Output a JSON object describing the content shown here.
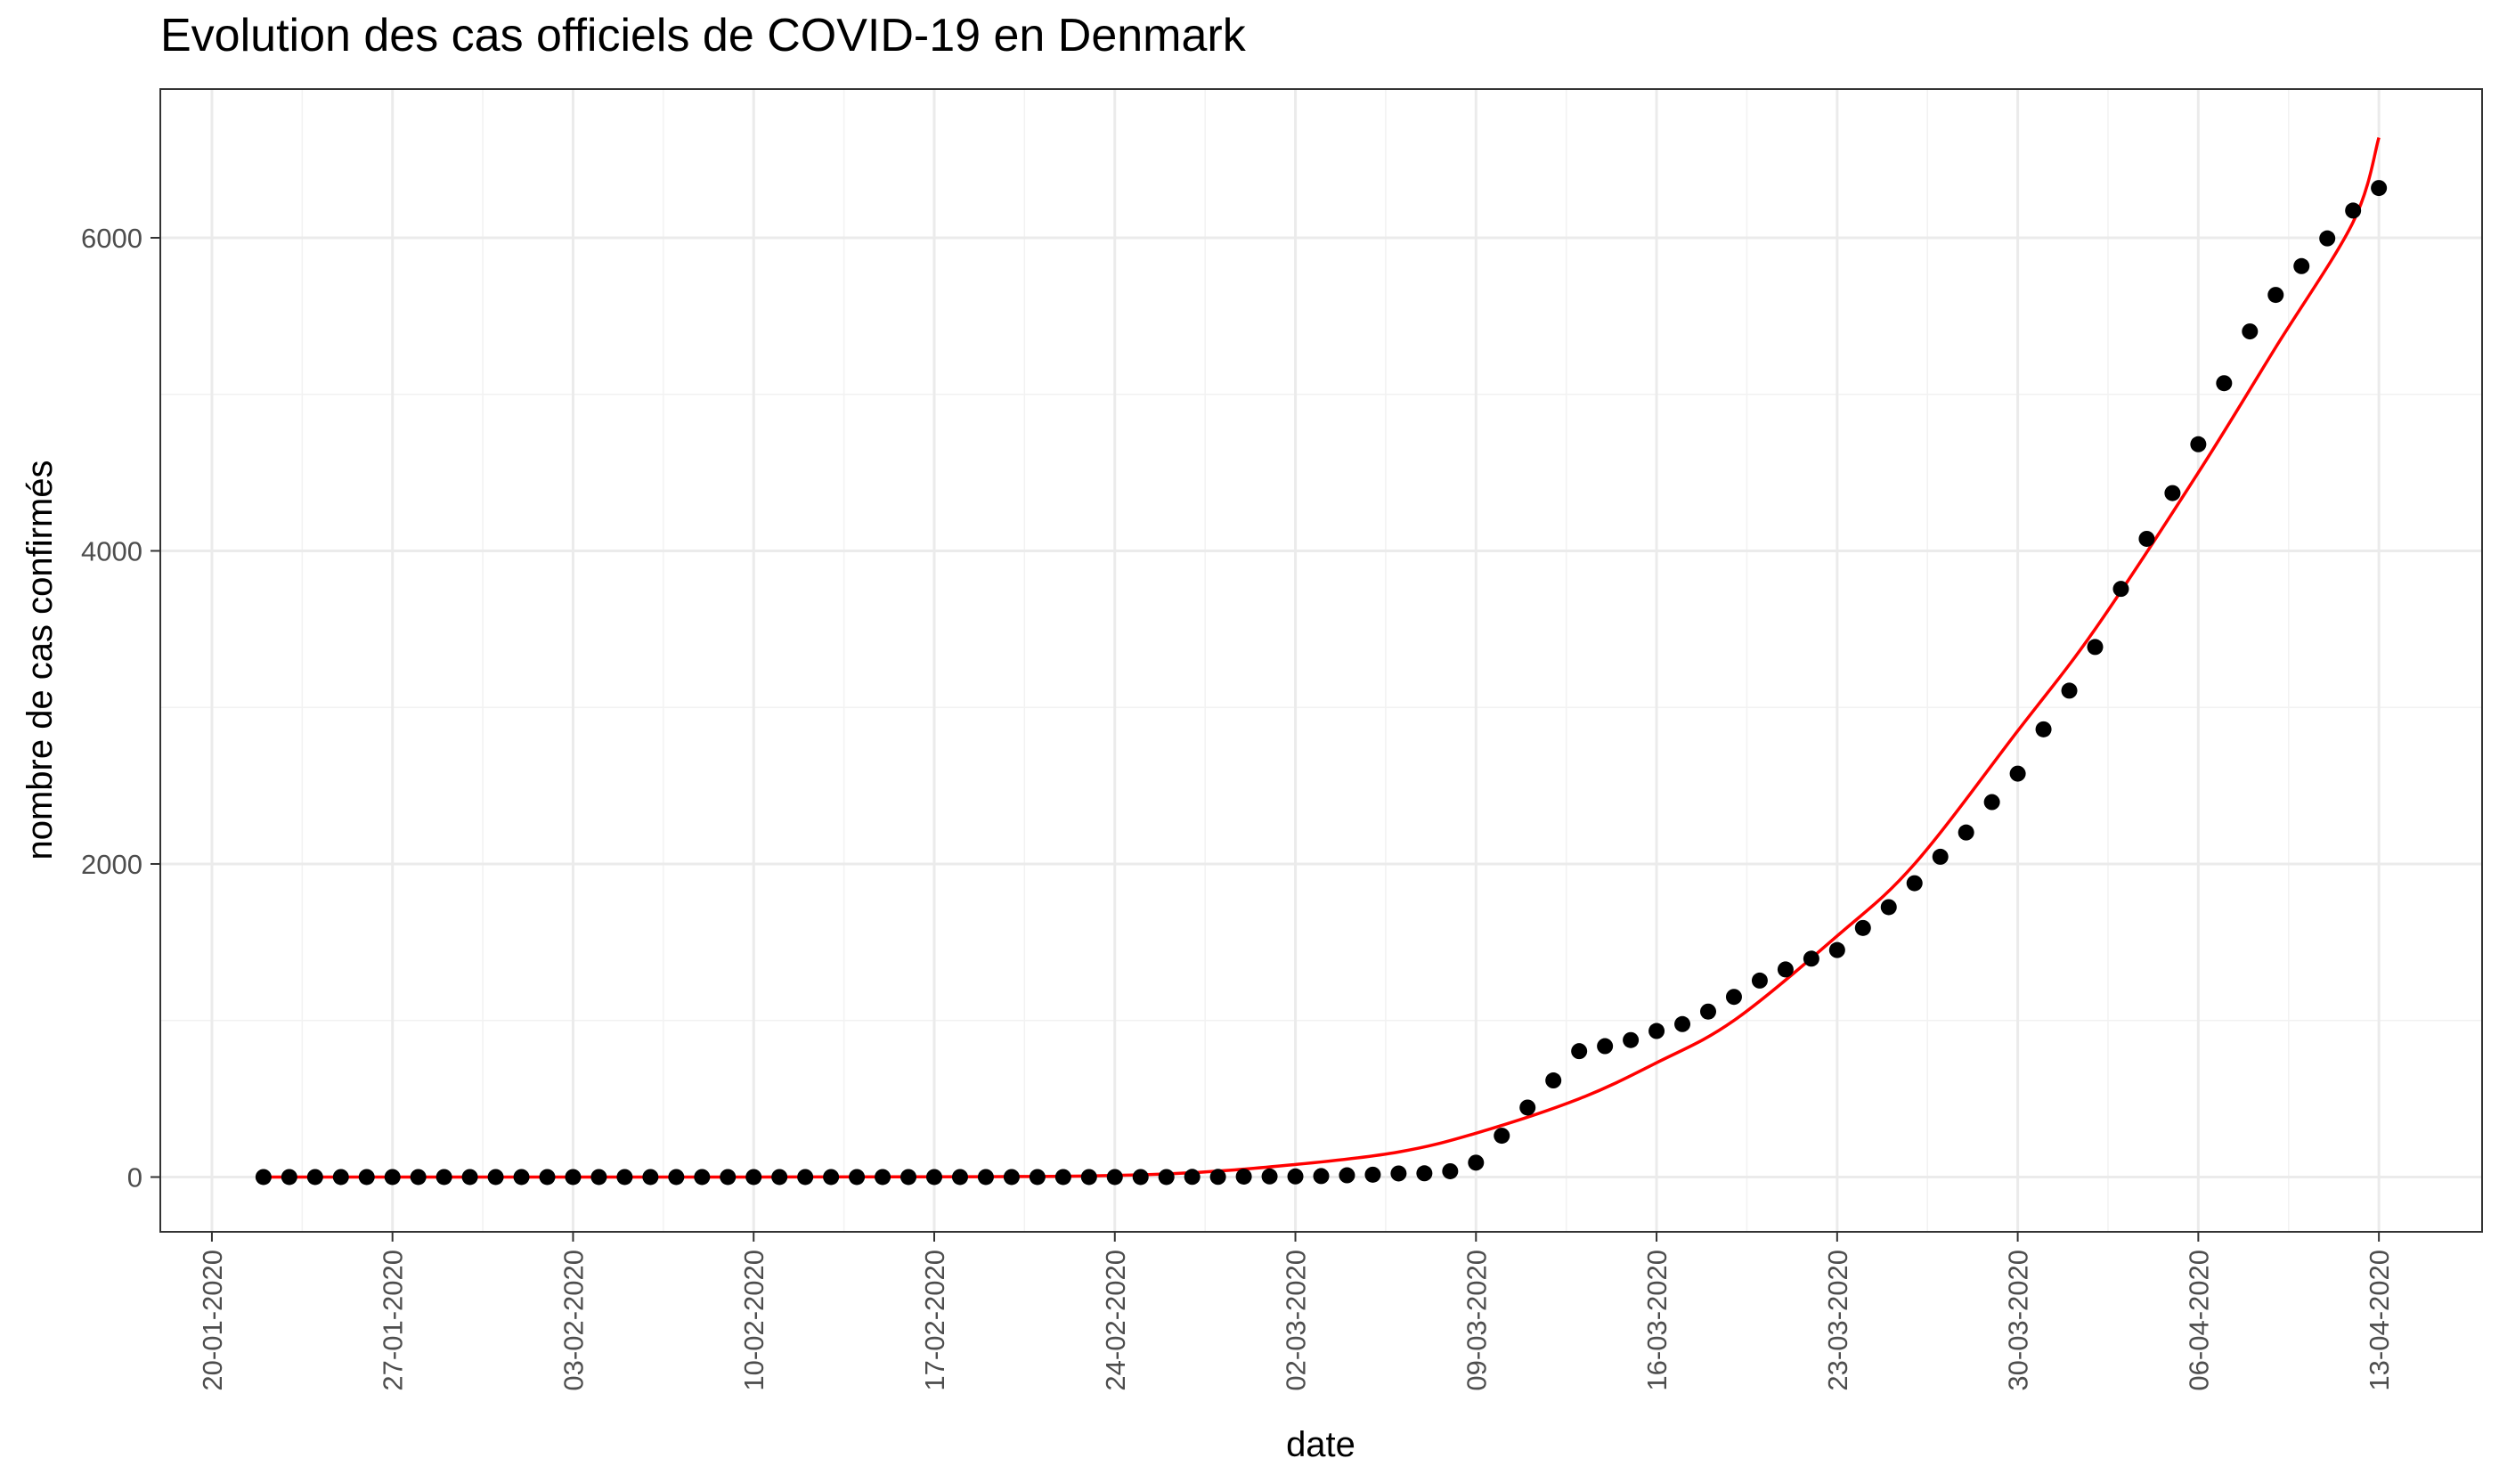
{
  "chart_data": {
    "type": "scatter",
    "title": "Evolution des cas officiels de COVID-19 en Denmark",
    "xlabel": "date",
    "ylabel": "nombre de cas confirmés",
    "x_ticks": [
      "20-01-2020",
      "27-01-2020",
      "03-02-2020",
      "10-02-2020",
      "17-02-2020",
      "24-02-2020",
      "02-03-2020",
      "09-03-2020",
      "16-03-2020",
      "23-03-2020",
      "30-03-2020",
      "06-04-2020",
      "13-04-2020"
    ],
    "y_ticks": [
      "0",
      "2000",
      "4000",
      "6000"
    ],
    "xlim": [
      "2020-01-18",
      "2020-04-17"
    ],
    "ylim": [
      -350,
      6950
    ],
    "grid": true,
    "legend": "none",
    "series": [
      {
        "kind": "points",
        "color": "#000000",
        "points": [
          [
            "2020-01-22",
            0
          ],
          [
            "2020-01-23",
            0
          ],
          [
            "2020-01-24",
            0
          ],
          [
            "2020-01-25",
            0
          ],
          [
            "2020-01-26",
            0
          ],
          [
            "2020-01-27",
            0
          ],
          [
            "2020-01-28",
            0
          ],
          [
            "2020-01-29",
            0
          ],
          [
            "2020-01-30",
            0
          ],
          [
            "2020-01-31",
            0
          ],
          [
            "2020-02-01",
            0
          ],
          [
            "2020-02-02",
            0
          ],
          [
            "2020-02-03",
            0
          ],
          [
            "2020-02-04",
            0
          ],
          [
            "2020-02-05",
            0
          ],
          [
            "2020-02-06",
            0
          ],
          [
            "2020-02-07",
            0
          ],
          [
            "2020-02-08",
            0
          ],
          [
            "2020-02-09",
            0
          ],
          [
            "2020-02-10",
            0
          ],
          [
            "2020-02-11",
            0
          ],
          [
            "2020-02-12",
            0
          ],
          [
            "2020-02-13",
            0
          ],
          [
            "2020-02-14",
            0
          ],
          [
            "2020-02-15",
            0
          ],
          [
            "2020-02-16",
            0
          ],
          [
            "2020-02-17",
            0
          ],
          [
            "2020-02-18",
            0
          ],
          [
            "2020-02-19",
            0
          ],
          [
            "2020-02-20",
            0
          ],
          [
            "2020-02-21",
            0
          ],
          [
            "2020-02-22",
            0
          ],
          [
            "2020-02-23",
            0
          ],
          [
            "2020-02-24",
            0
          ],
          [
            "2020-02-25",
            0
          ],
          [
            "2020-02-26",
            0
          ],
          [
            "2020-02-27",
            1
          ],
          [
            "2020-02-28",
            1
          ],
          [
            "2020-02-29",
            3
          ],
          [
            "2020-03-01",
            4
          ],
          [
            "2020-03-02",
            4
          ],
          [
            "2020-03-03",
            6
          ],
          [
            "2020-03-04",
            11
          ],
          [
            "2020-03-05",
            15
          ],
          [
            "2020-03-06",
            23
          ],
          [
            "2020-03-07",
            24
          ],
          [
            "2020-03-08",
            37
          ],
          [
            "2020-03-09",
            92
          ],
          [
            "2020-03-10",
            264
          ],
          [
            "2020-03-11",
            444
          ],
          [
            "2020-03-12",
            617
          ],
          [
            "2020-03-13",
            804
          ],
          [
            "2020-03-14",
            836
          ],
          [
            "2020-03-15",
            875
          ],
          [
            "2020-03-16",
            933
          ],
          [
            "2020-03-17",
            977
          ],
          [
            "2020-03-18",
            1057
          ],
          [
            "2020-03-19",
            1151
          ],
          [
            "2020-03-20",
            1255
          ],
          [
            "2020-03-21",
            1326
          ],
          [
            "2020-03-22",
            1395
          ],
          [
            "2020-03-23",
            1450
          ],
          [
            "2020-03-24",
            1591
          ],
          [
            "2020-03-25",
            1724
          ],
          [
            "2020-03-26",
            1877
          ],
          [
            "2020-03-27",
            2046
          ],
          [
            "2020-03-28",
            2201
          ],
          [
            "2020-03-29",
            2395
          ],
          [
            "2020-03-30",
            2577
          ],
          [
            "2020-03-31",
            2860
          ],
          [
            "2020-04-01",
            3107
          ],
          [
            "2020-04-02",
            3386
          ],
          [
            "2020-04-03",
            3757
          ],
          [
            "2020-04-04",
            4077
          ],
          [
            "2020-04-05",
            4369
          ],
          [
            "2020-04-06",
            4681
          ],
          [
            "2020-04-07",
            5071
          ],
          [
            "2020-04-08",
            5402
          ],
          [
            "2020-04-09",
            5635
          ],
          [
            "2020-04-10",
            5819
          ],
          [
            "2020-04-11",
            5996
          ],
          [
            "2020-04-12",
            6174
          ],
          [
            "2020-04-13",
            6318
          ]
        ]
      },
      {
        "kind": "line",
        "color": "#ff0000",
        "points": [
          [
            "2020-01-22",
            0
          ],
          [
            "2020-02-05",
            0
          ],
          [
            "2020-02-19",
            2
          ],
          [
            "2020-02-26",
            20
          ],
          [
            "2020-03-02",
            80
          ],
          [
            "2020-03-06",
            160
          ],
          [
            "2020-03-09",
            280
          ],
          [
            "2020-03-13",
            500
          ],
          [
            "2020-03-16",
            730
          ],
          [
            "2020-03-19",
            1000
          ],
          [
            "2020-03-23",
            1540
          ],
          [
            "2020-03-26",
            2000
          ],
          [
            "2020-03-30",
            2850
          ],
          [
            "2020-04-02",
            3500
          ],
          [
            "2020-04-06",
            4500
          ],
          [
            "2020-04-09",
            5300
          ],
          [
            "2020-04-12",
            6100
          ],
          [
            "2020-04-13",
            6640
          ]
        ]
      }
    ]
  }
}
